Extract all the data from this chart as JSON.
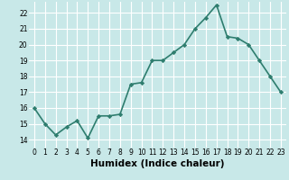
{
  "x": [
    0,
    1,
    2,
    3,
    4,
    5,
    6,
    7,
    8,
    9,
    10,
    11,
    12,
    13,
    14,
    15,
    16,
    17,
    18,
    19,
    20,
    21,
    22,
    23
  ],
  "y": [
    16.0,
    15.0,
    14.3,
    14.8,
    15.2,
    14.1,
    15.5,
    15.5,
    15.6,
    17.5,
    17.6,
    19.0,
    19.0,
    19.5,
    20.0,
    21.0,
    21.7,
    22.5,
    20.5,
    20.4,
    20.0,
    19.0,
    18.0,
    17.0
  ],
  "line_color": "#2e7d6e",
  "marker": "D",
  "marker_size": 2.2,
  "background_color": "#c8e8e8",
  "grid_color": "#ffffff",
  "xlabel": "Humidex (Indice chaleur)",
  "xlim": [
    -0.5,
    23.5
  ],
  "ylim": [
    13.5,
    22.7
  ],
  "yticks": [
    14,
    15,
    16,
    17,
    18,
    19,
    20,
    21,
    22
  ],
  "xticks": [
    0,
    1,
    2,
    3,
    4,
    5,
    6,
    7,
    8,
    9,
    10,
    11,
    12,
    13,
    14,
    15,
    16,
    17,
    18,
    19,
    20,
    21,
    22,
    23
  ],
  "tick_fontsize": 5.5,
  "xlabel_fontsize": 7.5,
  "line_width": 1.2
}
